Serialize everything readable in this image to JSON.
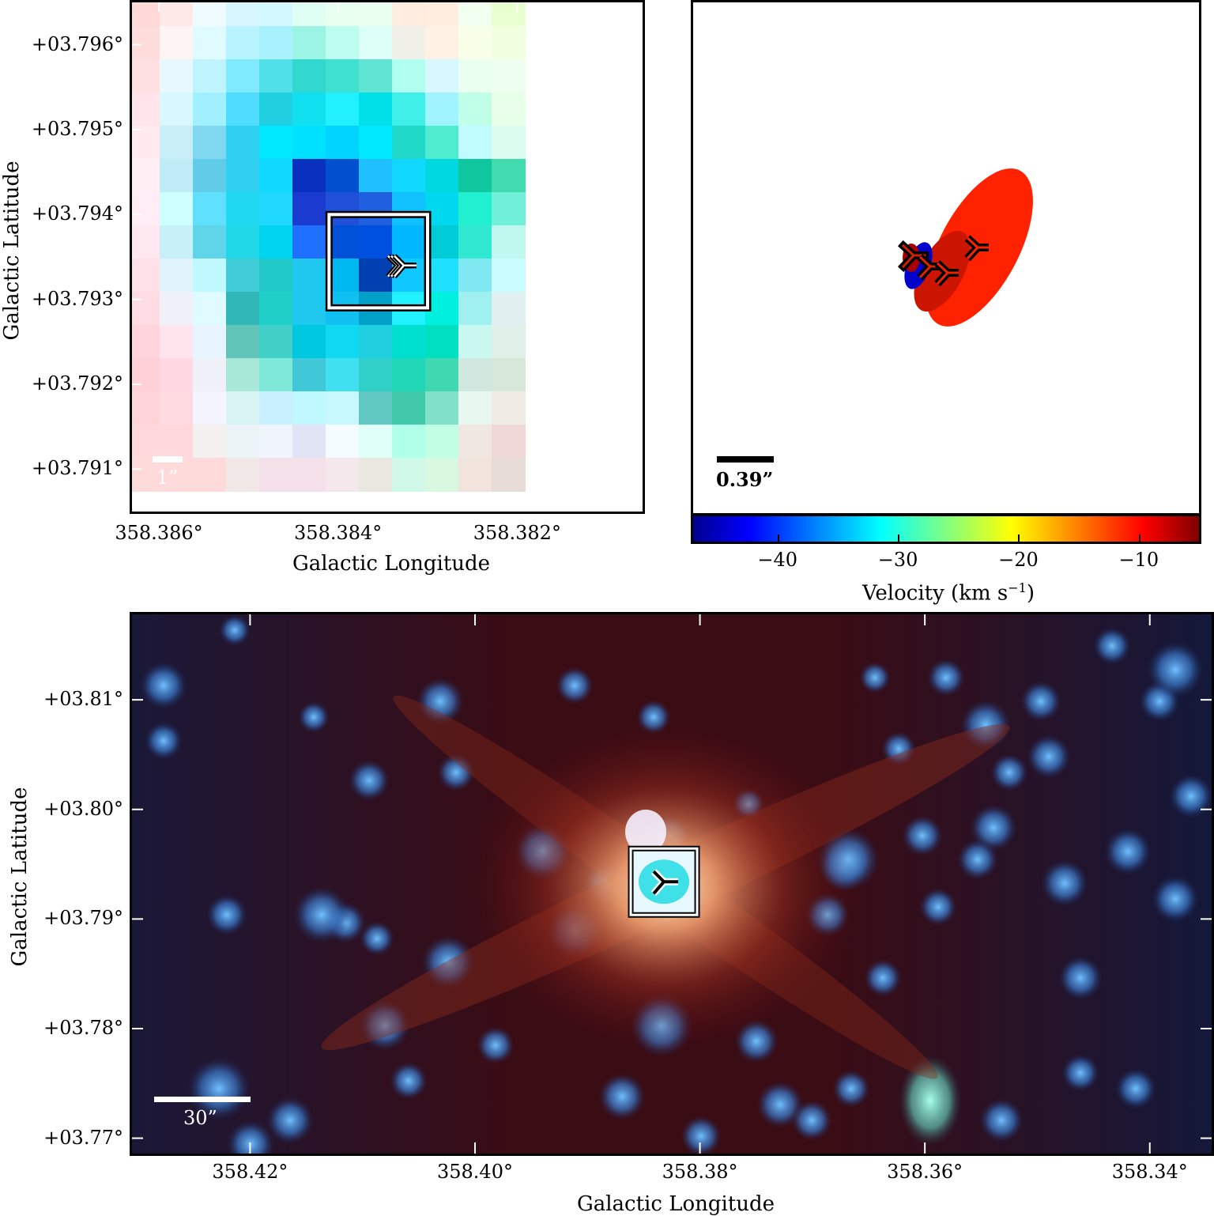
{
  "top_left": {
    "y_ticks": [
      "+03.796°",
      "+03.795°",
      "+03.794°",
      "+03.793°",
      "+03.792°",
      "+03.791°"
    ],
    "x_ticks": [
      "358.386°",
      "358.384°",
      "358.382°"
    ],
    "xlabel": "Galactic Longitude",
    "ylabel": "Galactic Latitude",
    "scale_label": "1”"
  },
  "top_right": {
    "scale_label": "0.39”",
    "colorbar": {
      "ticks": [
        "−40",
        "−30",
        "−20",
        "−10"
      ],
      "label": "Velocity (km s",
      "label_sup": "−1",
      "label_end": ")"
    }
  },
  "bottom": {
    "y_ticks": [
      "+03.81°",
      "+03.80°",
      "+03.79°",
      "+03.78°",
      "+03.77°"
    ],
    "x_ticks": [
      "358.42°",
      "358.40°",
      "358.38°",
      "358.36°",
      "358.34°"
    ],
    "xlabel": "Galactic Longitude",
    "ylabel": "Galactic Latitude",
    "scale_label": "30”"
  },
  "chart_data": [
    {
      "type": "heatmap",
      "panel": "top-left zoom RGB image",
      "xlabel": "Galactic Longitude",
      "ylabel": "Galactic Latitude",
      "xlim": [
        358.3863,
        358.3806
      ],
      "ylim": [
        3.7905,
        3.7965
      ],
      "x_ticks": [
        358.386,
        358.384,
        358.382
      ],
      "y_ticks": [
        3.796,
        3.795,
        3.794,
        3.793,
        3.792,
        3.791
      ],
      "markers": [
        {
          "symbol": "tri",
          "x": 358.3833,
          "y": 3.7934
        }
      ],
      "box": {
        "x_range": [
          358.3841,
          358.383
        ],
        "y_range": [
          3.7929,
          3.794
        ]
      }
    },
    {
      "type": "scatter",
      "panel": "top-right maser spots",
      "colorbar": {
        "label": "Velocity (km s^-1)",
        "range": [
          -47,
          -5
        ],
        "ticks": [
          -40,
          -30,
          -20,
          -10
        ]
      },
      "points": [
        {
          "velocity": -45,
          "color": "#0000cc"
        },
        {
          "velocity": -7,
          "color": "#aa0000"
        },
        {
          "velocity": -12,
          "color": "#cc1500"
        },
        {
          "velocity": -9,
          "color": "#ff2200"
        }
      ]
    },
    {
      "type": "heatmap",
      "panel": "bottom wide-field RGB image",
      "xlabel": "Galactic Longitude",
      "ylabel": "Galactic Latitude",
      "xlim": [
        358.4305,
        358.3345
      ],
      "ylim": [
        3.7686,
        3.8178
      ],
      "x_ticks": [
        358.42,
        358.4,
        358.38,
        358.36,
        358.34
      ],
      "y_ticks": [
        3.81,
        3.8,
        3.79,
        3.78,
        3.77
      ],
      "markers": [
        {
          "symbol": "tri",
          "x": 358.3832,
          "y": 3.7934
        }
      ]
    }
  ]
}
